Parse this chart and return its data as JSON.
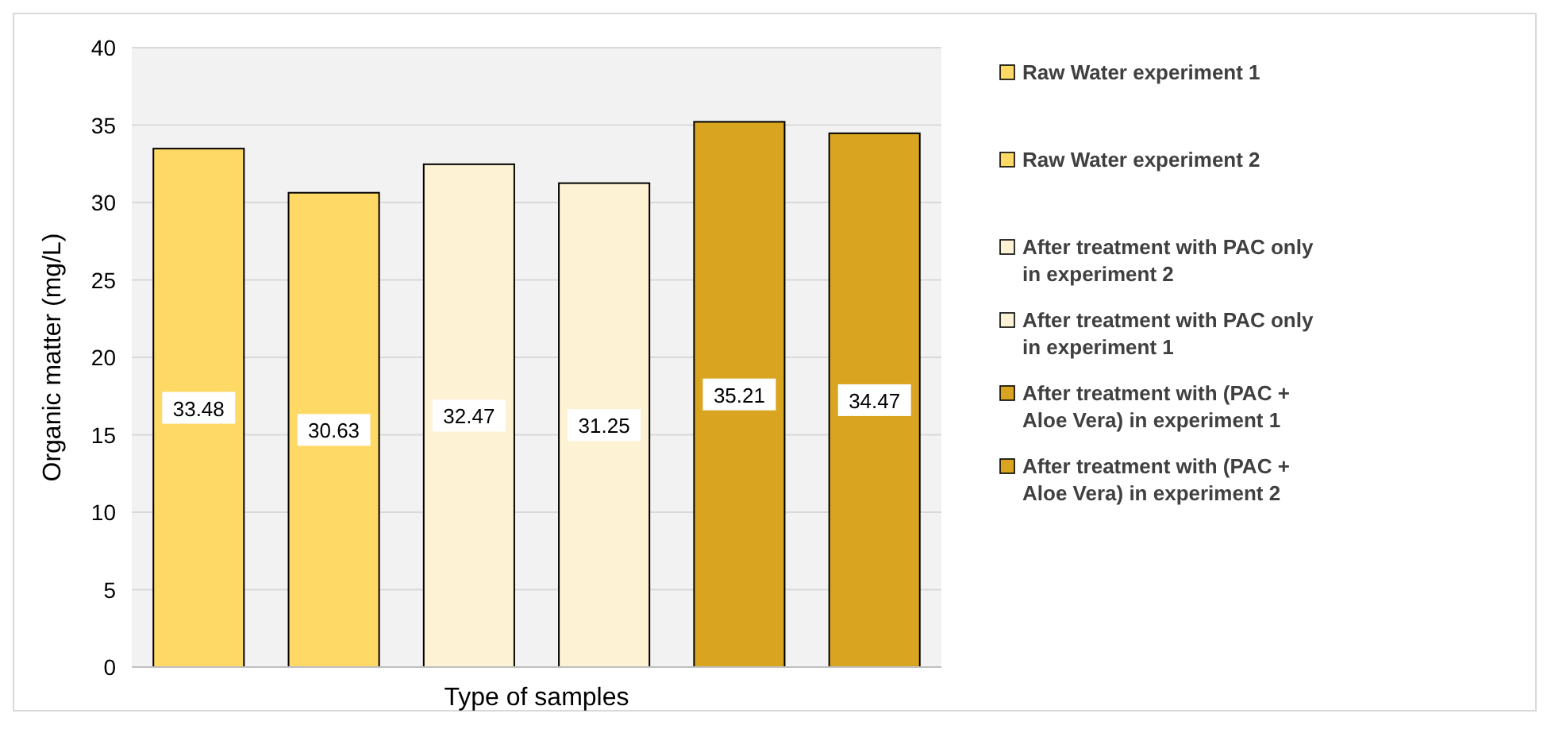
{
  "chart_data": {
    "type": "bar",
    "xlabel": "Type of samples",
    "ylabel": "Organic matter (mg/L)",
    "categories": [
      null,
      null,
      null,
      null,
      null,
      null
    ],
    "series": [
      {
        "name": "Raw Water experiment 1",
        "color": "#ffd966",
        "values": [
          33.48,
          null,
          null,
          null,
          null,
          null
        ]
      },
      {
        "name": "Raw Water experiment 2",
        "color": "#ffd966",
        "values": [
          null,
          30.63,
          null,
          null,
          null,
          null
        ]
      },
      {
        "name": "After treatment with PAC only in experiment 2",
        "color": "#fdf3d4",
        "values": [
          null,
          null,
          32.47,
          null,
          null,
          null
        ]
      },
      {
        "name": "After treatment with PAC only in experiment 1",
        "color": "#fdf3d4",
        "values": [
          null,
          null,
          null,
          31.25,
          null,
          null
        ]
      },
      {
        "name": "After treatment with (PAC + Aloe Vera) in experiment 1",
        "color": "#d9a520",
        "values": [
          null,
          null,
          null,
          null,
          35.21,
          null
        ]
      },
      {
        "name": "After treatment with (PAC + Aloe Vera) in experiment 2",
        "color": "#d9a520",
        "values": [
          null,
          null,
          null,
          null,
          null,
          34.47
        ]
      }
    ],
    "ylim": [
      0,
      40
    ],
    "yticks": [
      0,
      5,
      10,
      15,
      20,
      25,
      30,
      35,
      40
    ],
    "grid": "y",
    "legend": "right",
    "data_labels": true
  }
}
